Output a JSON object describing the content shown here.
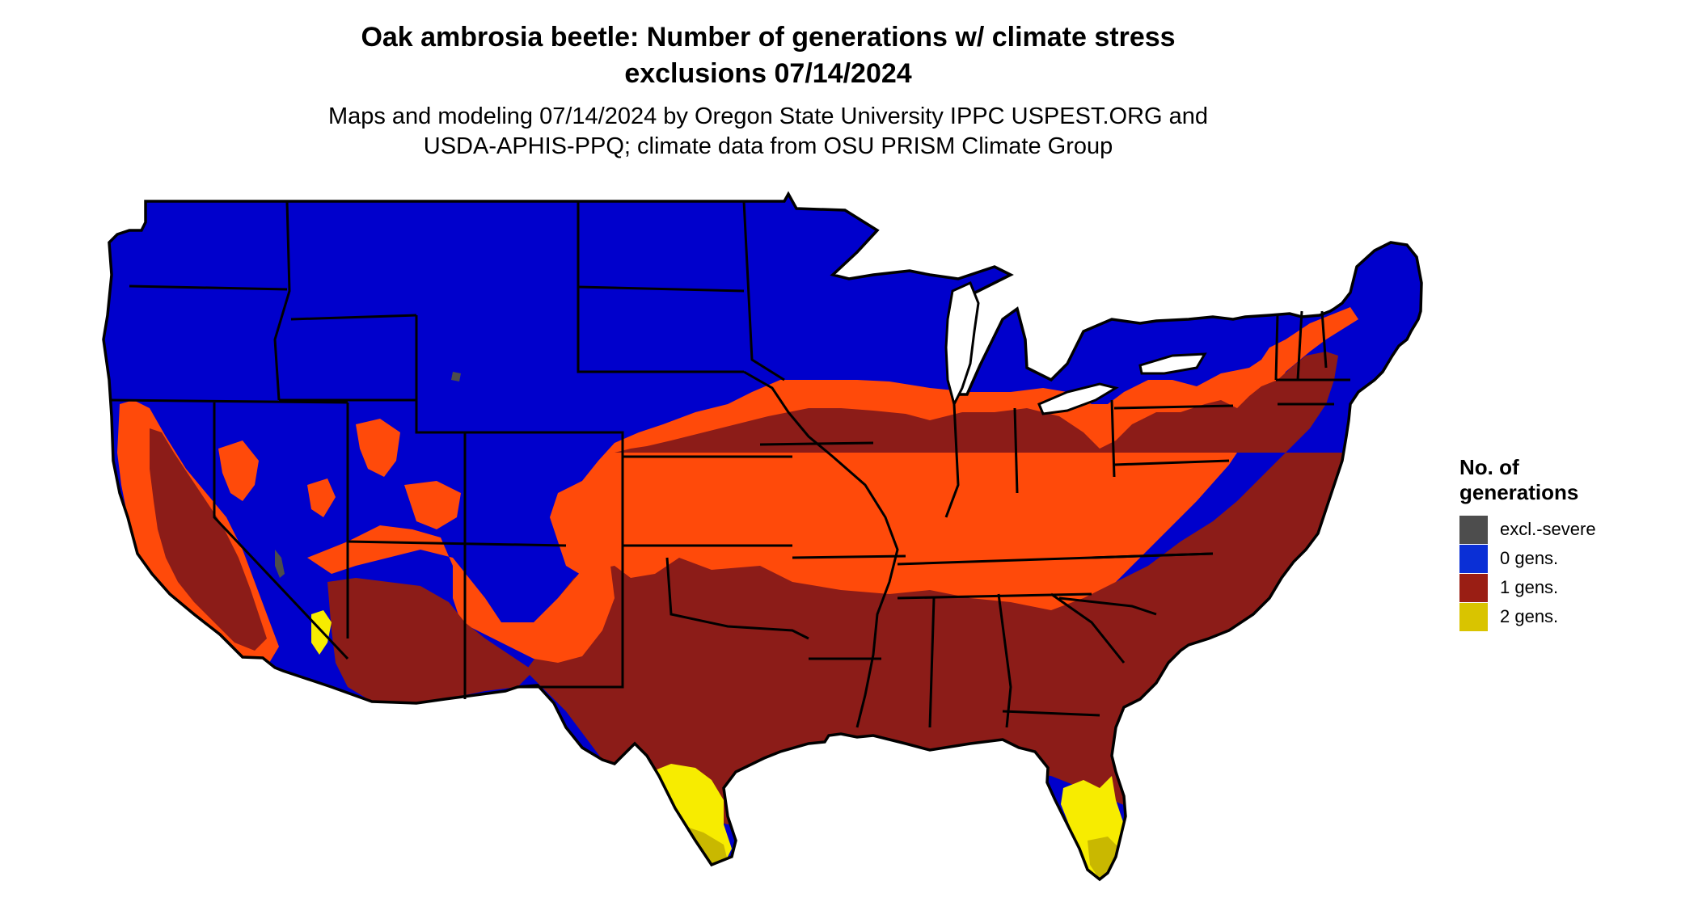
{
  "title": {
    "line1": "Oak ambrosia beetle: Number of generations w/ climate stress",
    "line2": "exclusions 07/14/2024"
  },
  "subtitle": {
    "line1": "Maps and modeling 07/14/2024 by Oregon State University IPPC USPEST.ORG and",
    "line2": "USDA-APHIS-PPQ; climate data from OSU PRISM Climate Group"
  },
  "legend": {
    "title_line1": "No. of",
    "title_line2": "generations",
    "items": [
      {
        "label": "excl.-severe",
        "color": "#4d4d4d"
      },
      {
        "label": "0 gens.",
        "color": "#0a2fd6"
      },
      {
        "label": "1 gens.",
        "color": "#9a1e14"
      },
      {
        "label": "2 gens.",
        "color": "#d9c400"
      }
    ]
  },
  "colors": {
    "zero_gens": "#0000cc",
    "one_gen": "#8c1c18",
    "partial_gen": "#ff4a0a",
    "two_gens": "#f7ec00",
    "excl_severe": "#4d4d4d",
    "state_lines": "#000000"
  }
}
